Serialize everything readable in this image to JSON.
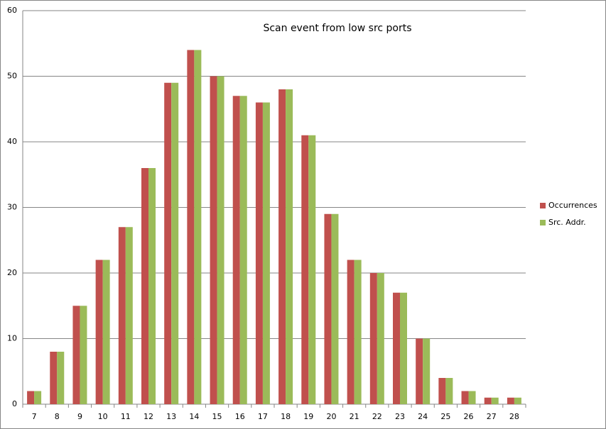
{
  "chart_data": {
    "type": "bar",
    "title": "Scan event from low src ports",
    "categories": [
      "7",
      "8",
      "9",
      "10",
      "11",
      "12",
      "13",
      "14",
      "15",
      "16",
      "17",
      "18",
      "19",
      "20",
      "21",
      "22",
      "23",
      "24",
      "25",
      "26",
      "27",
      "28"
    ],
    "series": [
      {
        "name": "Occurrences",
        "color": "#c0504d",
        "values": [
          2,
          8,
          15,
          22,
          27,
          36,
          49,
          54,
          50,
          47,
          46,
          48,
          41,
          29,
          22,
          20,
          17,
          10,
          4,
          2,
          1,
          1
        ]
      },
      {
        "name": "Src. Addr.",
        "color": "#9bbb59",
        "values": [
          2,
          8,
          15,
          22,
          27,
          36,
          49,
          54,
          50,
          47,
          46,
          48,
          41,
          29,
          22,
          20,
          17,
          10,
          4,
          2,
          1,
          1
        ]
      }
    ],
    "ylim": [
      0,
      60
    ],
    "yticks": [
      0,
      10,
      20,
      30,
      40,
      50,
      60
    ],
    "grid": true,
    "legend": "right"
  }
}
